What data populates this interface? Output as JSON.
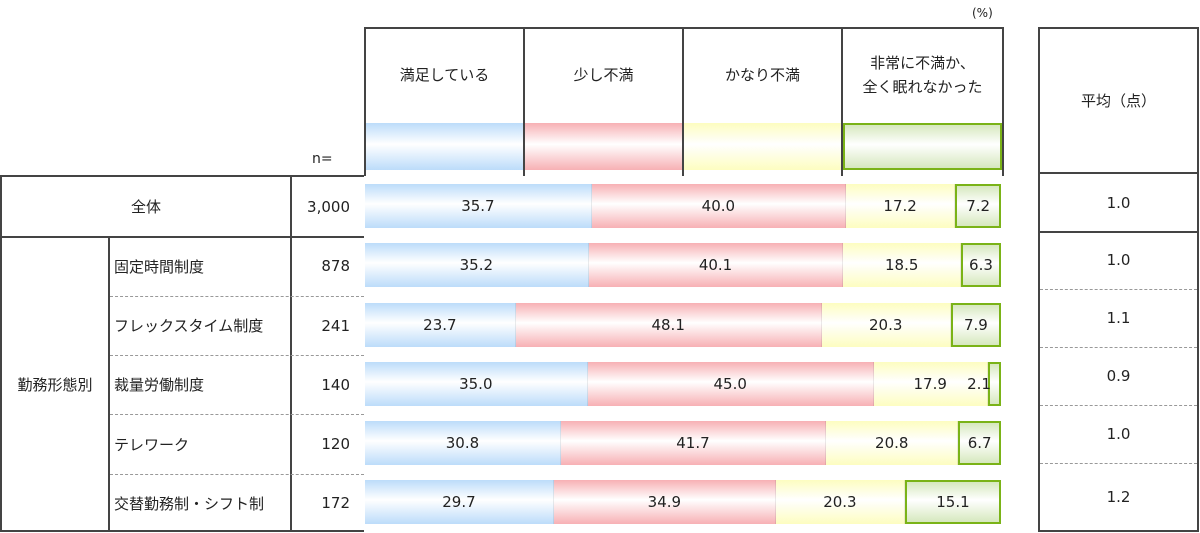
{
  "chart_data": {
    "type": "bar",
    "orientation": "horizontal-stacked-100",
    "unit": "(%)",
    "n_label": "n=",
    "avg_header": "平均（点）",
    "group_label": "勤務形態別",
    "series": [
      {
        "name": "満足している",
        "color": "#bcdcfa"
      },
      {
        "name": "少し不満",
        "color": "#f7b0b4"
      },
      {
        "name": "かなり不満",
        "color": "#fdfdc0"
      },
      {
        "name": "非常に不満か、\n全く眠れなかった",
        "color": "#d6e8be",
        "border": "#7ab317"
      }
    ],
    "rows": [
      {
        "label": "全体",
        "n": "3,000",
        "values": [
          35.7,
          40.0,
          17.2,
          7.2
        ],
        "labels": [
          "35.7",
          "40.0",
          "17.2",
          "7.2"
        ],
        "avg": "1.0"
      },
      {
        "label": "固定時間制度",
        "n": "878",
        "values": [
          35.2,
          40.1,
          18.5,
          6.3
        ],
        "labels": [
          "35.2",
          "40.1",
          "18.5",
          "6.3"
        ],
        "avg": "1.0"
      },
      {
        "label": "フレックスタイム制度",
        "n": "241",
        "values": [
          23.7,
          48.1,
          20.3,
          7.9
        ],
        "labels": [
          "23.7",
          "48.1",
          "20.3",
          "7.9"
        ],
        "avg": "1.1"
      },
      {
        "label": "裁量労働制度",
        "n": "140",
        "values": [
          35.0,
          45.0,
          17.9,
          2.1
        ],
        "labels": [
          "35.0",
          "45.0",
          "17.9",
          "2.1"
        ],
        "avg": "0.9"
      },
      {
        "label": "テレワーク",
        "n": "120",
        "values": [
          30.8,
          41.7,
          20.8,
          6.7
        ],
        "labels": [
          "30.8",
          "41.7",
          "20.8",
          "6.7"
        ],
        "avg": "1.0"
      },
      {
        "label": "交替勤務制・シフト制",
        "n": "172",
        "values": [
          29.7,
          34.9,
          20.3,
          15.1
        ],
        "labels": [
          "29.7",
          "34.9",
          "20.3",
          "15.1"
        ],
        "avg": "1.2"
      }
    ]
  }
}
